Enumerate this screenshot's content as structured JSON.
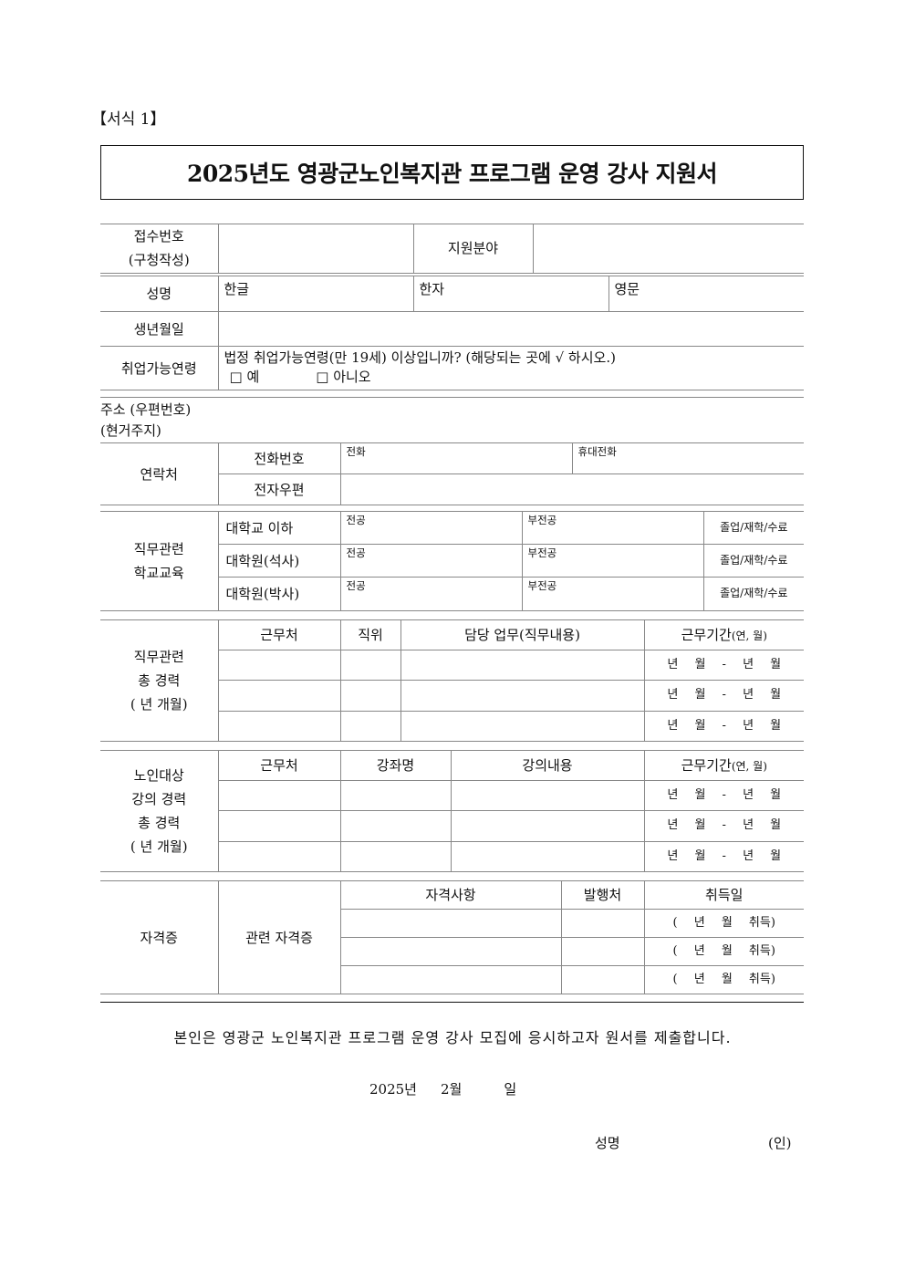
{
  "form_label": "【서식 1】",
  "title": "2025년도 영광군노인복지관 프로그램 운영 강사 지원서",
  "reception": {
    "label1": "접수번호",
    "label2": "(구청작성)",
    "field_label": "지원분야"
  },
  "name": {
    "label": "성명",
    "korean": "한글",
    "hanja": "한자",
    "english": "영문"
  },
  "birth": {
    "label": "생년월일"
  },
  "age": {
    "label": "취업가능연령",
    "question": "법정 취업가능연령(만 19세) 이상입니까? (해당되는 곳에 √ 하시오.)",
    "yes": "□ 예",
    "no": "□ 아니오"
  },
  "address": {
    "label1": "주소 (우편번호)",
    "label2": "(현거주지)"
  },
  "contact": {
    "label": "연락처",
    "phone": "전화번호",
    "phone_sub": "전화",
    "mobile_sub": "휴대전화",
    "email": "전자우편"
  },
  "education": {
    "label1": "직무관련",
    "label2": "학교교육",
    "major": "전공",
    "minor": "부전공",
    "status": "졸업/재학/수료",
    "rows": [
      "대학교 이하",
      "대학원(석사)",
      "대학원(박사)"
    ]
  },
  "career": {
    "label1": "직무관련",
    "label2": "총 경력",
    "label3": "(    년   개월)",
    "headers": [
      "근무처",
      "직위",
      "담당 업무(직무내용)",
      "근무기간"
    ],
    "period_unit": "(연, 월)",
    "period": "년  월 - 년  월"
  },
  "lecture": {
    "label1": "노인대상",
    "label2": "강의 경력",
    "label3": "총 경력",
    "label4": "(    년   개월)",
    "headers": [
      "근무처",
      "강좌명",
      "강의내용",
      "근무기간"
    ],
    "period_unit": "(연, 월)",
    "period": "년  월 - 년  월"
  },
  "cert": {
    "label": "자격증",
    "sub_label": "관련 자격증",
    "headers": [
      "자격사항",
      "발행처",
      "취득일"
    ],
    "acquired": "(    년  월  취득)"
  },
  "statement": "본인은 영광군 노인복지관 프로그램 운영 강사 모집에 응시하고자 원서를 제출합니다.",
  "date": {
    "year": "2025년",
    "month": "2월",
    "day": "일"
  },
  "signature": {
    "label": "성명",
    "seal": "(인)"
  }
}
